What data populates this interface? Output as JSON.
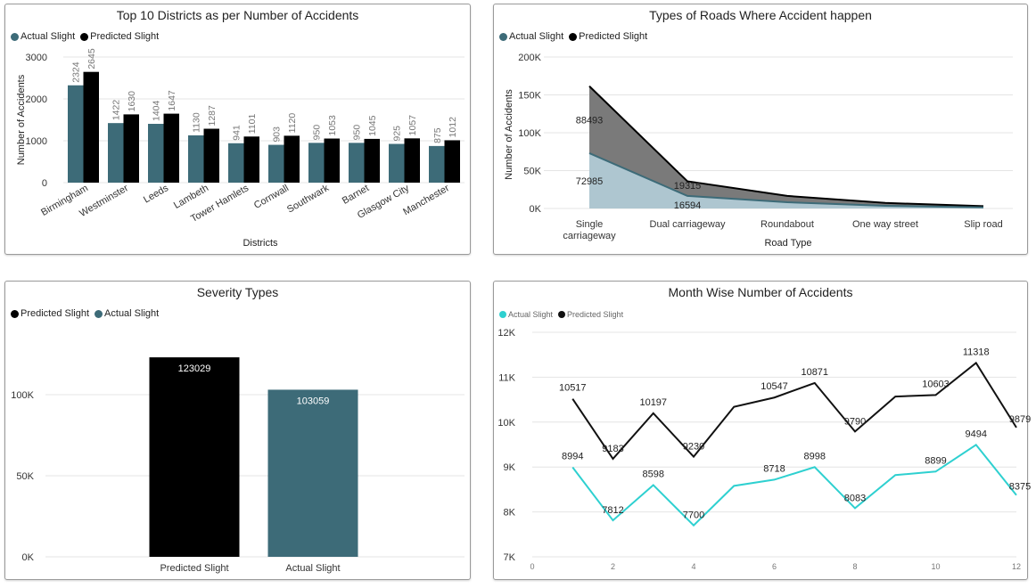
{
  "chart_data": [
    {
      "type": "bar",
      "title": "Top 10 Districts as per Number of Accidents",
      "xlabel": "Districts",
      "ylabel": "Number of Accidents",
      "ylim": [
        0,
        3000
      ],
      "yticks": [
        0,
        1000,
        2000,
        3000
      ],
      "yticklabels": [
        "0",
        "1000",
        "2000",
        "3000"
      ],
      "legend_position": "top-left",
      "categories": [
        "Birmingham",
        "Westminster",
        "Leeds",
        "Lambeth",
        "Tower Hamlets",
        "Cornwall",
        "Southwark",
        "Barnet",
        "Glasgow City",
        "Manchester"
      ],
      "series": [
        {
          "name": "Actual Slight",
          "color": "#3d6b78",
          "values": [
            2324,
            1422,
            1404,
            1130,
            941,
            903,
            950,
            950,
            925,
            875
          ]
        },
        {
          "name": "Predicted Slight",
          "color": "#000000",
          "values": [
            2645,
            1630,
            1647,
            1287,
            1101,
            1120,
            1053,
            1045,
            1057,
            1012
          ]
        }
      ]
    },
    {
      "type": "area",
      "title": "Types of Roads Where Accident happen",
      "xlabel": "Road Type",
      "ylabel": "Number of Accidents",
      "ylim": [
        0,
        200000
      ],
      "yticks": [
        0,
        50000,
        100000,
        150000,
        200000
      ],
      "yticklabels": [
        "0K",
        "50K",
        "100K",
        "150K",
        "200K"
      ],
      "legend_position": "top-left",
      "stacked": true,
      "categories": [
        "Single carriageway",
        "Dual carriageway",
        "Roundabout",
        "One way street",
        "Slip road"
      ],
      "series": [
        {
          "name": "Actual Slight",
          "color": "#3d6b78",
          "fill": "#aec6d0",
          "values": [
            72985,
            16594,
            8200,
            3600,
            1500
          ]
        },
        {
          "name": "Predicted Slight",
          "color": "#000000",
          "fill": "#7a7a7a",
          "values": [
            88493,
            19315,
            8400,
            3700,
            1600
          ]
        }
      ],
      "data_labels": [
        {
          "series": 0,
          "index": 0,
          "text": "72985"
        },
        {
          "series": 0,
          "index": 1,
          "text": "16594"
        },
        {
          "series": 1,
          "index": 0,
          "text": "88493"
        },
        {
          "series": 1,
          "index": 1,
          "text": "19315"
        }
      ]
    },
    {
      "type": "bar",
      "title": "Severity Types",
      "ylim": [
        0,
        150000
      ],
      "yticks": [
        0,
        50000,
        100000
      ],
      "yticklabels": [
        "0K",
        "50K",
        "100K"
      ],
      "legend_position": "top-left",
      "legend": [
        {
          "name": "Predicted Slight",
          "color": "#000000"
        },
        {
          "name": "Actual Slight",
          "color": "#3d6b78"
        }
      ],
      "categories": [
        "Predicted Slight",
        "Actual Slight"
      ],
      "values": [
        123029,
        103059
      ],
      "colors": [
        "#000000",
        "#3d6b78"
      ]
    },
    {
      "type": "line",
      "title": "Month Wise Number of Accidents",
      "xlim": [
        0,
        12
      ],
      "xticks": [
        0,
        2,
        4,
        6,
        8,
        10,
        12
      ],
      "ylim": [
        7000,
        12000
      ],
      "yticks": [
        7000,
        8000,
        9000,
        10000,
        11000,
        12000
      ],
      "yticklabels": [
        "7K",
        "8K",
        "9K",
        "10K",
        "11K",
        "12K"
      ],
      "legend_position": "top-left",
      "x": [
        1,
        2,
        3,
        4,
        5,
        6,
        7,
        8,
        9,
        10,
        11,
        12
      ],
      "series": [
        {
          "name": "Actual Slight",
          "color": "#2ed0d0",
          "values": [
            8994,
            7812,
            8598,
            7700,
            8580,
            8718,
            8998,
            8083,
            8820,
            8899,
            9494,
            8375
          ],
          "labels": [
            "8994",
            "7812",
            "8598",
            "7700",
            "",
            "8718",
            "8998",
            "8083",
            "",
            "8899",
            "9494",
            "8375"
          ]
        },
        {
          "name": "Predicted Slight",
          "color": "#111111",
          "values": [
            10517,
            9183,
            10197,
            9230,
            10340,
            10547,
            10871,
            9790,
            10570,
            10603,
            11318,
            9879
          ],
          "labels": [
            "10517",
            "9183",
            "10197",
            "9230",
            "",
            "10547",
            "10871",
            "9790",
            "",
            "10603",
            "11318",
            "9879"
          ]
        }
      ]
    }
  ]
}
